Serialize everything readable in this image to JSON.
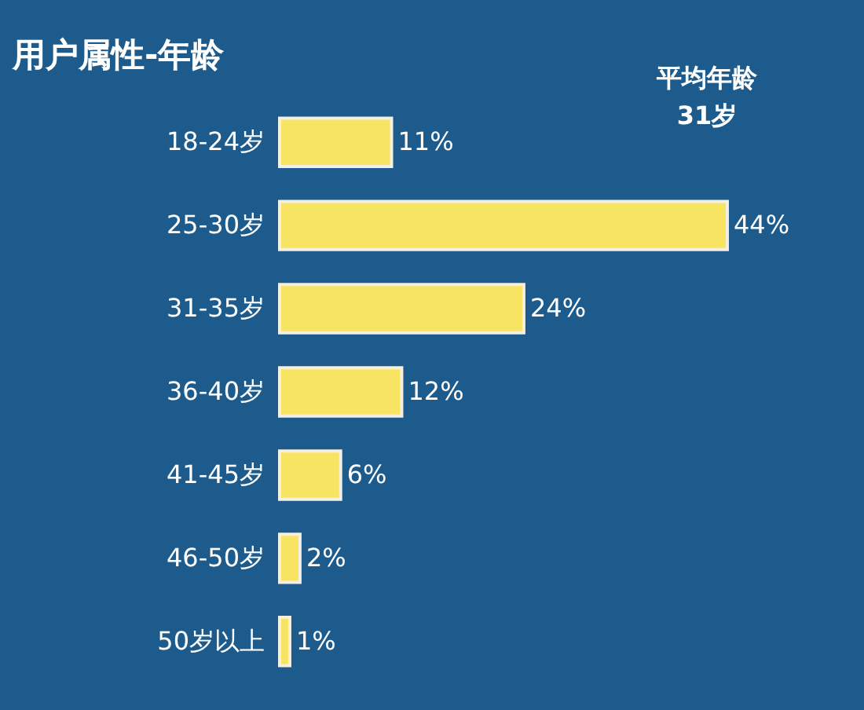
{
  "chart_data": {
    "type": "bar",
    "orientation": "horizontal",
    "title": "用户属性-年龄",
    "categories": [
      "18-24岁",
      "25-30岁",
      "31-35岁",
      "36-40岁",
      "41-45岁",
      "46-50岁",
      "50岁以上"
    ],
    "values": [
      11,
      44,
      24,
      12,
      6,
      2,
      1
    ],
    "value_labels": [
      "11%",
      "44%",
      "24%",
      "12%",
      "6%",
      "2%",
      "1%"
    ],
    "color": "#f8e463",
    "annotations": [
      "平均年龄\n31岁"
    ]
  }
}
